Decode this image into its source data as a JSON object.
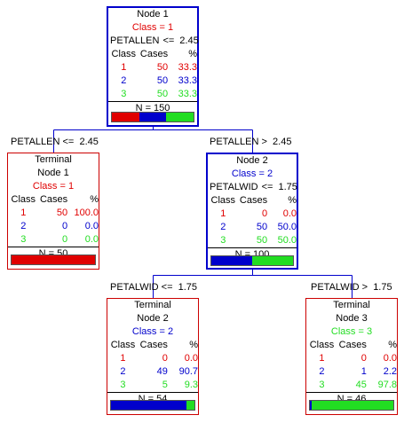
{
  "colors": {
    "class1": "#e00000",
    "class2": "#0000cc",
    "class3": "#22dd22",
    "node_border": "#0000cc",
    "terminal_border": "#cc0000"
  },
  "nodes": [
    {
      "id": "root",
      "kind": "node",
      "type_label": "Node 1",
      "class_label": "Class = 1",
      "class_id": 1,
      "split": {
        "var": "PETALLEN",
        "op": "<=",
        "value": "2.45"
      },
      "table_headers": [
        "Class",
        "Cases",
        "%"
      ],
      "rows": [
        {
          "cls": "1",
          "cases": "50",
          "pct": "33.3"
        },
        {
          "cls": "2",
          "cases": "50",
          "pct": "33.3"
        },
        {
          "cls": "3",
          "cases": "50",
          "pct": "33.3"
        }
      ],
      "n_label": "N = 150",
      "dist": [
        0.333,
        0.333,
        0.333
      ]
    },
    {
      "id": "term1",
      "kind": "terminal",
      "type_label": "Terminal",
      "sub_label": "Node 1",
      "class_label": "Class = 1",
      "class_id": 1,
      "table_headers": [
        "Class",
        "Cases",
        "%"
      ],
      "rows": [
        {
          "cls": "1",
          "cases": "50",
          "pct": "100.0"
        },
        {
          "cls": "2",
          "cases": "0",
          "pct": "0.0"
        },
        {
          "cls": "3",
          "cases": "0",
          "pct": "0.0"
        }
      ],
      "n_label": "N = 50",
      "dist": [
        1.0,
        0.0,
        0.0
      ]
    },
    {
      "id": "node2",
      "kind": "node",
      "type_label": "Node 2",
      "class_label": "Class = 2",
      "class_id": 2,
      "split": {
        "var": "PETALWID",
        "op": "<=",
        "value": "1.75"
      },
      "table_headers": [
        "Class",
        "Cases",
        "%"
      ],
      "rows": [
        {
          "cls": "1",
          "cases": "0",
          "pct": "0.0"
        },
        {
          "cls": "2",
          "cases": "50",
          "pct": "50.0"
        },
        {
          "cls": "3",
          "cases": "50",
          "pct": "50.0"
        }
      ],
      "n_label": "N = 100",
      "dist": [
        0.0,
        0.5,
        0.5
      ]
    },
    {
      "id": "term2",
      "kind": "terminal",
      "type_label": "Terminal",
      "sub_label": "Node 2",
      "class_label": "Class = 2",
      "class_id": 2,
      "table_headers": [
        "Class",
        "Cases",
        "%"
      ],
      "rows": [
        {
          "cls": "1",
          "cases": "0",
          "pct": "0.0"
        },
        {
          "cls": "2",
          "cases": "49",
          "pct": "90.7"
        },
        {
          "cls": "3",
          "cases": "5",
          "pct": "9.3"
        }
      ],
      "n_label": "N = 54",
      "dist": [
        0.0,
        0.907,
        0.093
      ]
    },
    {
      "id": "term3",
      "kind": "terminal",
      "type_label": "Terminal",
      "sub_label": "Node 3",
      "class_label": "Class = 3",
      "class_id": 3,
      "table_headers": [
        "Class",
        "Cases",
        "%"
      ],
      "rows": [
        {
          "cls": "1",
          "cases": "0",
          "pct": "0.0"
        },
        {
          "cls": "2",
          "cases": "1",
          "pct": "2.2"
        },
        {
          "cls": "3",
          "cases": "45",
          "pct": "97.8"
        }
      ],
      "n_label": "N = 46",
      "dist": [
        0.0,
        0.022,
        0.978
      ]
    }
  ],
  "edges": [
    {
      "from": "root",
      "to": "term1",
      "label": "PETALLEN <=  2.45"
    },
    {
      "from": "root",
      "to": "node2",
      "label": "PETALLEN >  2.45"
    },
    {
      "from": "node2",
      "to": "term2",
      "label": "PETALWID <=  1.75"
    },
    {
      "from": "node2",
      "to": "term3",
      "label": "PETALWID >  1.75"
    }
  ]
}
